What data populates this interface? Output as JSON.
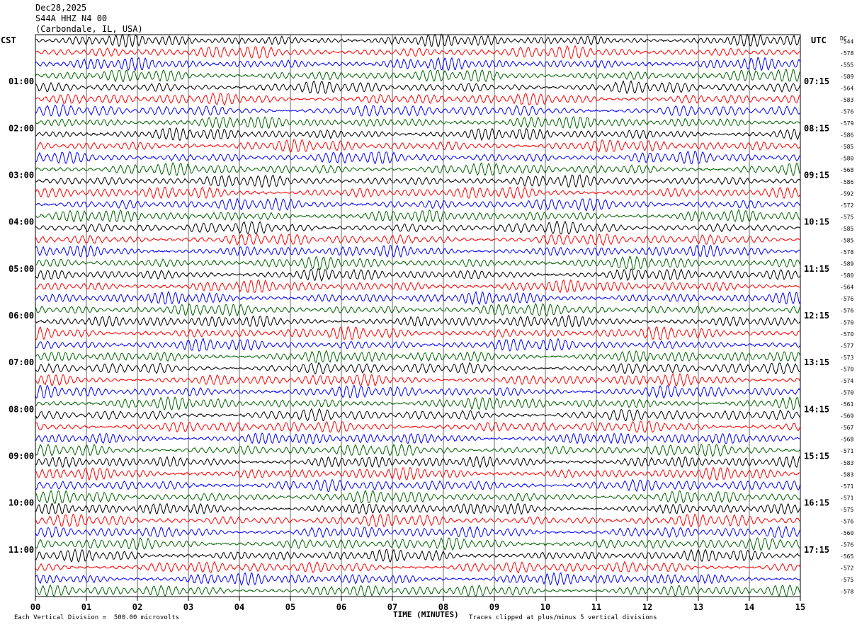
{
  "header": {
    "line1": "Dec28,2025",
    "line2": "S44A HHZ N4 00",
    "line3": "(Carbondale, IL, USA)"
  },
  "labels": {
    "left_tz": "CST",
    "right_tz": "UTC",
    "dc": "DC"
  },
  "footer": {
    "scale": "Each Vertical Division =  500.00 microvolts",
    "clip": "Traces clipped at plus/minus 5 vertical divisions"
  },
  "chart_data": {
    "type": "line",
    "xlabel": "TIME (MINUTES)",
    "xlim": [
      0,
      15
    ],
    "x_ticks": [
      "00",
      "01",
      "02",
      "03",
      "04",
      "05",
      "06",
      "07",
      "08",
      "09",
      "10",
      "11",
      "12",
      "13",
      "14",
      "15"
    ],
    "left_hour_labels": [
      "01:00",
      "02:00",
      "03:00",
      "04:00",
      "05:00",
      "06:00",
      "07:00",
      "08:00",
      "09:00",
      "10:00",
      "11:00"
    ],
    "right_hour_labels": [
      "07:15",
      "08:15",
      "09:15",
      "10:15",
      "11:15",
      "12:15",
      "13:15",
      "14:15",
      "15:15",
      "16:15",
      "17:15"
    ],
    "trace_colors": [
      "#000000",
      "#ff0000",
      "#0000ff",
      "#006400"
    ],
    "dc_offsets": [
      -544,
      -578,
      -555,
      -589,
      -564,
      -583,
      -576,
      -579,
      -586,
      -585,
      -580,
      -568,
      -586,
      -592,
      -572,
      -575,
      -585,
      -585,
      -578,
      -589,
      -580,
      -564,
      -576,
      -576,
      -570,
      -570,
      -577,
      -573,
      -570,
      -574,
      -570,
      -561,
      -569,
      -567,
      -568,
      -571,
      -583,
      -583,
      -571,
      -571,
      -575,
      -576,
      -560,
      -576,
      -565,
      -572,
      -575,
      -578
    ],
    "grid": true
  }
}
